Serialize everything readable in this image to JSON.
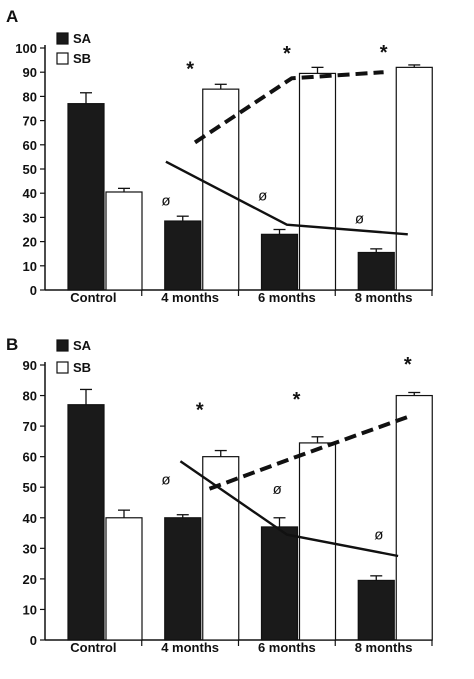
{
  "chart_data": [
    {
      "panel": "A",
      "type": "bar",
      "categories": [
        "Control",
        "4 months",
        "6 months",
        "8 months"
      ],
      "series": [
        {
          "name": "SA",
          "color": "#1a1a1a",
          "values": [
            77,
            28.5,
            23,
            15.5
          ],
          "errors": [
            4.5,
            2,
            2,
            1.5
          ]
        },
        {
          "name": "SB",
          "color": "#ffffff",
          "values": [
            40.5,
            83,
            89.5,
            92
          ],
          "errors": [
            1.5,
            2,
            2.5,
            1
          ]
        }
      ],
      "ylim": [
        0,
        100
      ],
      "yticks": [
        0,
        10,
        20,
        30,
        40,
        50,
        60,
        70,
        80,
        90,
        100
      ],
      "legend_position": "top-left",
      "trend_lines": [
        {
          "series": "SA",
          "style": "solid",
          "points": [
            [
              0.75,
              53
            ],
            [
              2.0,
              27
            ],
            [
              3.25,
              23
            ]
          ]
        },
        {
          "series": "SB",
          "style": "dashed",
          "points": [
            [
              1.05,
              61
            ],
            [
              2.05,
              87.5
            ],
            [
              3.0,
              90
            ]
          ]
        }
      ],
      "annotations": [
        {
          "text": "*",
          "x": 1,
          "y": 93.5
        },
        {
          "text": "*",
          "x": 2,
          "y": 100
        },
        {
          "text": "*",
          "x": 3,
          "y": 100.5
        },
        {
          "text": "ø",
          "x": 0.75,
          "y": 37
        },
        {
          "text": "ø",
          "x": 1.75,
          "y": 39
        },
        {
          "text": "ø",
          "x": 2.75,
          "y": 29.5
        }
      ]
    },
    {
      "panel": "B",
      "type": "bar",
      "categories": [
        "Control",
        "4 months",
        "6 months",
        "8 months"
      ],
      "series": [
        {
          "name": "SA",
          "color": "#1a1a1a",
          "values": [
            77,
            40,
            37,
            19.5
          ],
          "errors": [
            5,
            1,
            3,
            1.5
          ]
        },
        {
          "name": "SB",
          "color": "#ffffff",
          "values": [
            40,
            60,
            64.5,
            80
          ],
          "errors": [
            2.5,
            2,
            2,
            1
          ]
        }
      ],
      "ylim": [
        0,
        90
      ],
      "yticks": [
        0,
        10,
        20,
        30,
        40,
        50,
        60,
        70,
        80,
        90
      ],
      "legend_position": "top-left",
      "trend_lines": [
        {
          "series": "SA",
          "style": "solid",
          "points": [
            [
              0.9,
              58.5
            ],
            [
              2.0,
              34.5
            ],
            [
              3.15,
              27.5
            ]
          ]
        },
        {
          "series": "SB",
          "style": "dashed",
          "points": [
            [
              1.2,
              49.5
            ],
            [
              2.1,
              60
            ],
            [
              3.25,
              73
            ]
          ]
        }
      ],
      "annotations": [
        {
          "text": "*",
          "x": 1.1,
          "y": 77
        },
        {
          "text": "*",
          "x": 2.1,
          "y": 80.5
        },
        {
          "text": "*",
          "x": 3.25,
          "y": 92
        },
        {
          "text": "ø",
          "x": 0.75,
          "y": 52.5
        },
        {
          "text": "ø",
          "x": 1.9,
          "y": 49.5
        },
        {
          "text": "ø",
          "x": 2.95,
          "y": 34.5
        }
      ]
    }
  ]
}
